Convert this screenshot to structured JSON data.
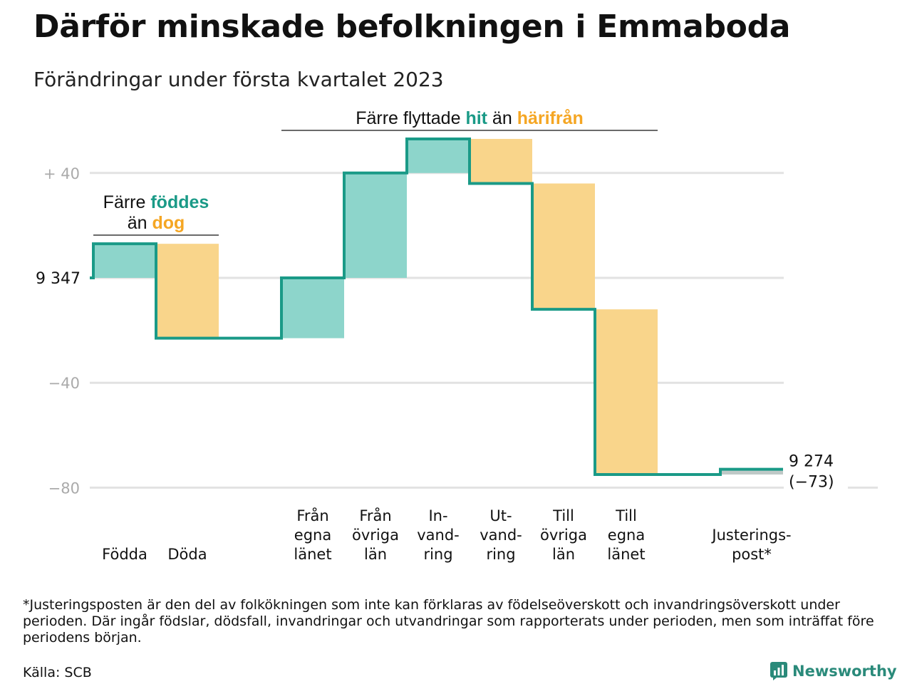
{
  "title": "Därför minskade befolkningen i Emmaboda",
  "subtitle": "Förändringar under första kvartalet 2023",
  "footnote": "*Justeringsposten är den del av folkökningen som inte kan förklaras av födelseöverskott och invandringsöverskott under perioden. Där ingår födslar, dödsfall, invandringar och utvandringar som rapporterats under perioden, men som inträffat före periodens början.",
  "source": "Källa: SCB",
  "brand": "Newsworthy",
  "colors": {
    "increase": "#8dd5cb",
    "decrease": "#f9d58b",
    "line": "#1a9a87",
    "adjust": "#bfc9c7",
    "grid": "#e2e2e2",
    "accent_teal": "#1a9a87",
    "accent_orange": "#f5a623"
  },
  "chart_data": {
    "type": "waterfall",
    "start": {
      "value": 9347,
      "label": "9 347"
    },
    "end": {
      "value": 9274,
      "label": "9 274",
      "change_label": "(−73)"
    },
    "ylim": [
      -80,
      52
    ],
    "yticks": [
      {
        "value": 40,
        "label": "+ 40"
      },
      {
        "value": 0,
        "label": ""
      },
      {
        "value": -40,
        "label": "−40"
      },
      {
        "value": -80,
        "label": "−80"
      }
    ],
    "steps": [
      {
        "label": "Födda",
        "delta": 13,
        "kind": "increase"
      },
      {
        "label": "Döda",
        "delta": -36,
        "kind": "decrease"
      },
      {
        "label": "",
        "delta": 0,
        "kind": "gap"
      },
      {
        "label": "Från egna länet",
        "label_lines": [
          "Från",
          "egna",
          "länet"
        ],
        "delta": 23,
        "kind": "increase"
      },
      {
        "label": "Från övriga län",
        "label_lines": [
          "Från",
          "övriga",
          "län"
        ],
        "delta": 40,
        "kind": "increase"
      },
      {
        "label": "In-vandring",
        "label_lines": [
          "In-",
          "vand-",
          "ring"
        ],
        "delta": 13,
        "kind": "increase"
      },
      {
        "label": "Ut-vandring",
        "label_lines": [
          "Ut-",
          "vand-",
          "ring"
        ],
        "delta": -17,
        "kind": "decrease"
      },
      {
        "label": "Till övriga län",
        "label_lines": [
          "Till",
          "övriga",
          "län"
        ],
        "delta": -48,
        "kind": "decrease"
      },
      {
        "label": "Till egna länet",
        "label_lines": [
          "Till",
          "egna",
          "länet"
        ],
        "delta": -63,
        "kind": "decrease"
      },
      {
        "label": "",
        "delta": 0,
        "kind": "gap"
      },
      {
        "label": "Justerings-post*",
        "label_lines": [
          "Justerings-",
          "post*"
        ],
        "delta": 2,
        "kind": "adjust"
      }
    ],
    "annotations": [
      {
        "group": [
          0,
          1
        ],
        "parts": [
          {
            "text": "Färre ",
            "style": "plain"
          },
          {
            "text": "föddes",
            "style": "teal"
          }
        ],
        "parts2": [
          {
            "text": "än ",
            "style": "plain"
          },
          {
            "text": "dog",
            "style": "orange"
          }
        ]
      },
      {
        "group": [
          3,
          8
        ],
        "parts": [
          {
            "text": "Färre flyttade ",
            "style": "plain"
          },
          {
            "text": "hit",
            "style": "teal"
          },
          {
            "text": " än ",
            "style": "plain"
          },
          {
            "text": "härifrån",
            "style": "orange"
          }
        ]
      }
    ]
  }
}
